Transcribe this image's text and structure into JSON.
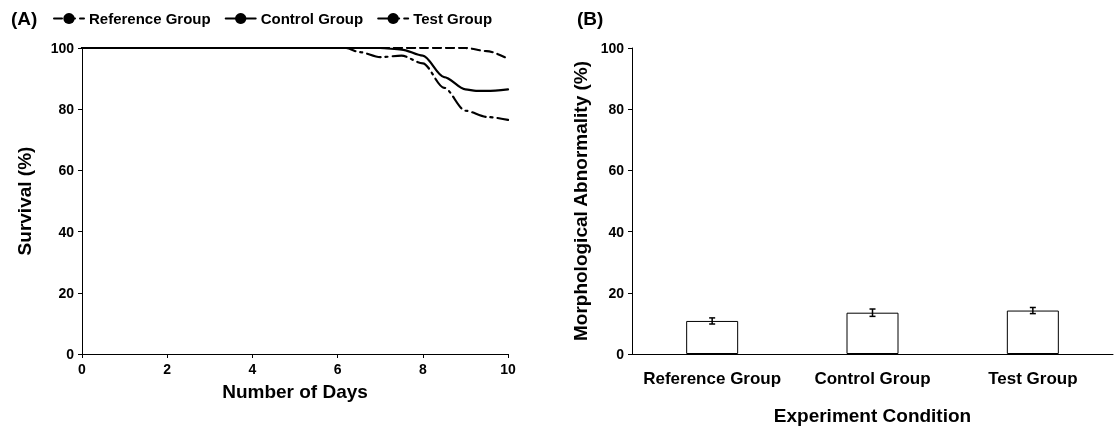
{
  "chart_data": [
    {
      "type": "line",
      "title": "(A)",
      "xlabel": "Number of Days",
      "ylabel": "Survival (%)",
      "xlim": [
        0,
        10
      ],
      "xticks": [
        0,
        2,
        4,
        6,
        8,
        10
      ],
      "ylim": [
        0,
        100
      ],
      "yticks": [
        0,
        20,
        40,
        60,
        80,
        100
      ],
      "grid": false,
      "legend": "top",
      "marker": "none",
      "series": [
        {
          "name": "Reference Group",
          "color": "#000000",
          "line_style": "dashed",
          "x": [
            0,
            2,
            4,
            6,
            7,
            8,
            9,
            9.5,
            10
          ],
          "values": [
            100,
            100,
            100,
            100,
            100,
            100,
            100,
            99,
            96.5
          ]
        },
        {
          "name": "Control Group",
          "color": "#000000",
          "line_style": "solid",
          "x": [
            0,
            2,
            4,
            6,
            7,
            7.5,
            8,
            8.5,
            9,
            9.25,
            9.5,
            10
          ],
          "values": [
            100,
            100,
            100,
            100,
            100,
            99.5,
            97.5,
            90.5,
            86.5,
            86,
            86,
            86.5
          ]
        },
        {
          "name": "Test Group",
          "color": "#000000",
          "line_style": "dashdot",
          "x": [
            0,
            2,
            4,
            6,
            6.2,
            6.5,
            7,
            7.5,
            8,
            8.5,
            9,
            9.5,
            10
          ],
          "values": [
            100,
            100,
            100,
            100,
            100,
            98.7,
            97,
            97.5,
            95,
            87,
            79.5,
            77.5,
            76.5
          ]
        }
      ]
    },
    {
      "type": "bar",
      "title": "(B)",
      "xlabel": "Experiment Condition",
      "ylabel": "Morphological Abnormality (%)",
      "categories": [
        "Reference Group",
        "Control Group",
        "Test Group"
      ],
      "ylim": [
        0,
        100
      ],
      "yticks": [
        0,
        20,
        40,
        60,
        80,
        100
      ],
      "grid": false,
      "legend": false,
      "series": [
        {
          "color": "#ffffff",
          "values": [
            10.8,
            13.5,
            14.2
          ],
          "errors": [
            1,
            1.2,
            1
          ]
        }
      ]
    }
  ]
}
